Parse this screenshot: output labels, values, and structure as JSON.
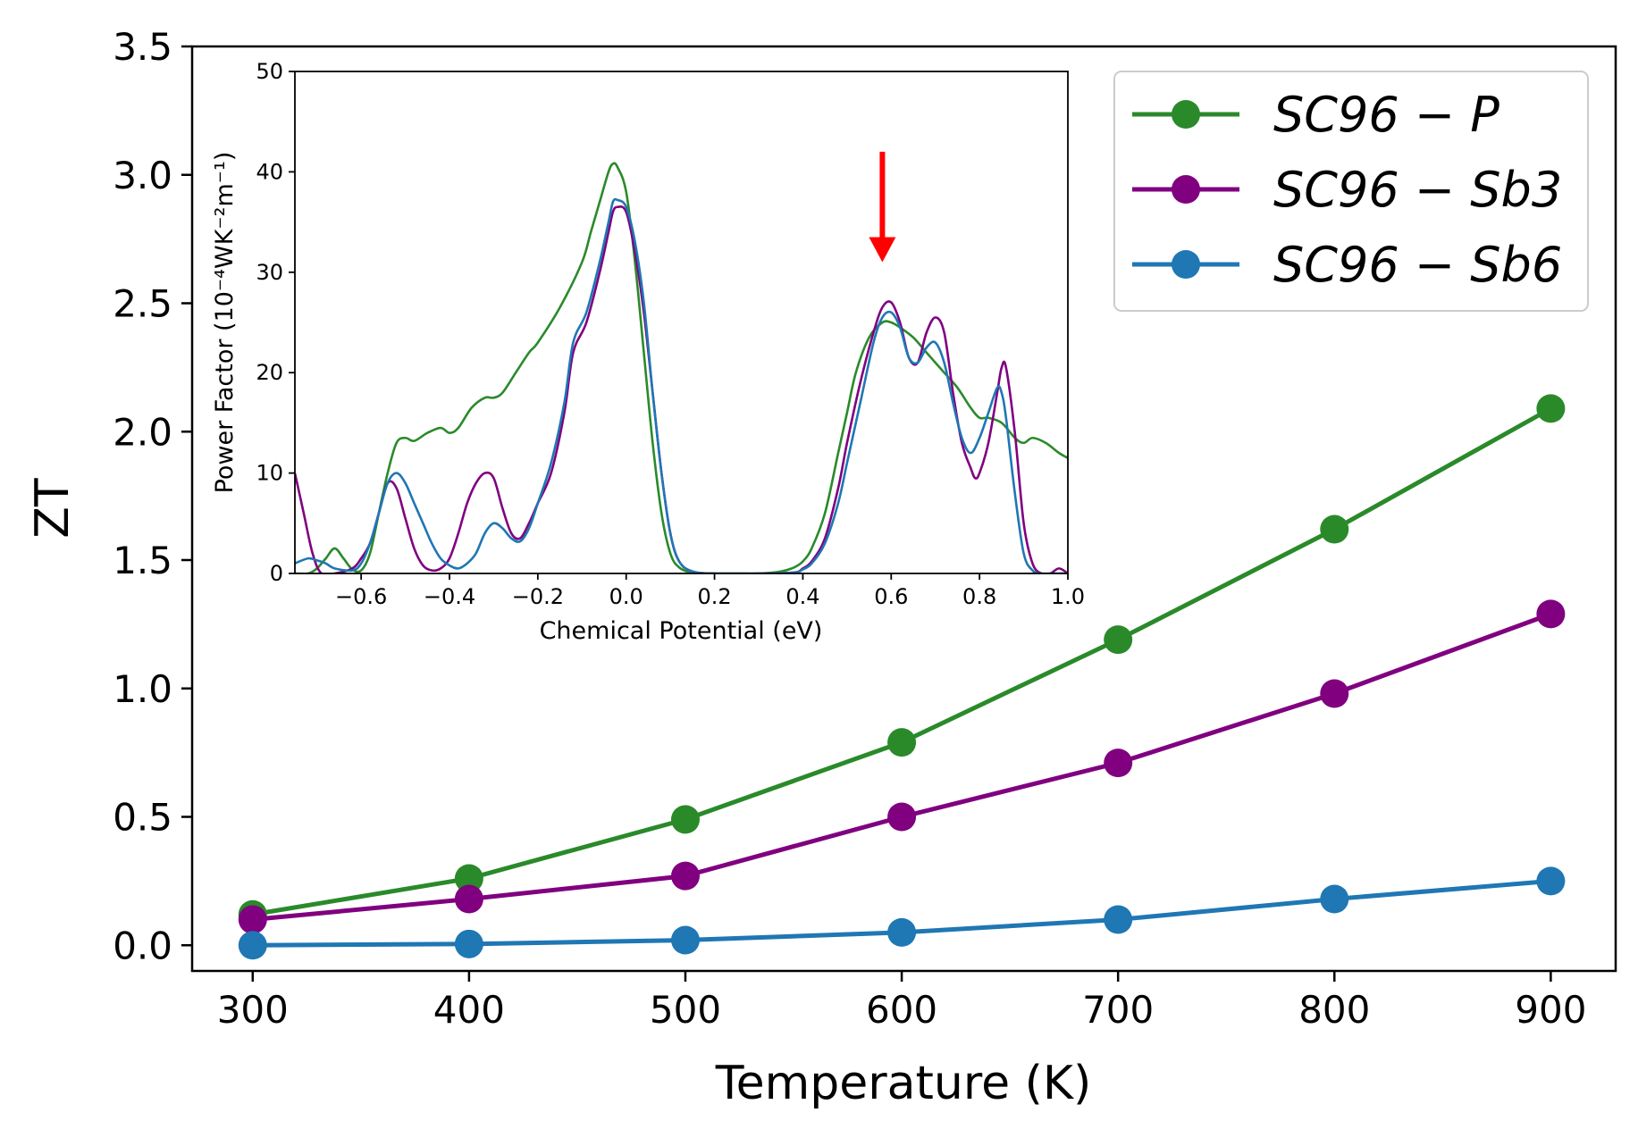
{
  "chart_data": [
    {
      "id": "main",
      "type": "line",
      "xlabel": "Temperature (K)",
      "ylabel": "ZT",
      "xlim": [
        272,
        930
      ],
      "ylim": [
        -0.1,
        3.5
      ],
      "x": [
        300,
        400,
        500,
        600,
        700,
        800,
        900
      ],
      "xticks": [
        300,
        400,
        500,
        600,
        700,
        800,
        900
      ],
      "yticks": [
        0.0,
        0.5,
        1.0,
        1.5,
        2.0,
        2.5,
        3.0,
        3.5
      ],
      "ytick_labels": [
        "0.0",
        "0.5",
        "1.0",
        "1.5",
        "2.0",
        "2.5",
        "3.0",
        "3.5"
      ],
      "legend_position": "top-right",
      "series": [
        {
          "name": "SC96 − P",
          "color": "#2a8a2a",
          "values": [
            0.12,
            0.26,
            0.49,
            0.79,
            1.19,
            1.62,
            2.09
          ]
        },
        {
          "name": "SC96 − Sb3",
          "color": "#800080",
          "values": [
            0.1,
            0.18,
            0.27,
            0.5,
            0.71,
            0.98,
            1.29
          ]
        },
        {
          "name": "SC96 − Sb6",
          "color": "#1f77b4",
          "values": [
            0.0,
            0.005,
            0.02,
            0.05,
            0.1,
            0.18,
            0.25
          ]
        }
      ]
    },
    {
      "id": "inset",
      "type": "line",
      "xlabel": "Chemical Potential (eV)",
      "ylabel": "Power Factor (10⁻⁴WK⁻²m⁻¹)",
      "xlim": [
        -0.75,
        1.0
      ],
      "ylim": [
        0,
        50
      ],
      "xticks": [
        -0.6,
        -0.4,
        -0.2,
        0.0,
        0.2,
        0.4,
        0.6,
        0.8,
        1.0
      ],
      "xtick_labels": [
        "−0.6",
        "−0.4",
        "−0.2",
        "0.0",
        "0.2",
        "0.4",
        "0.6",
        "0.8",
        "1.0"
      ],
      "yticks": [
        0,
        10,
        20,
        30,
        40,
        50
      ],
      "ytick_labels": [
        "0",
        "10",
        "20",
        "30",
        "40",
        "50"
      ],
      "annotation": {
        "type": "arrow",
        "color": "#ff0000",
        "x": 0.58,
        "y_from": 42,
        "y_to": 31
      },
      "series": [
        {
          "name": "SC96 − P",
          "color": "#2a8a2a",
          "x": [
            -0.75,
            -0.72,
            -0.7,
            -0.68,
            -0.66,
            -0.64,
            -0.62,
            -0.6,
            -0.58,
            -0.56,
            -0.54,
            -0.52,
            -0.5,
            -0.48,
            -0.45,
            -0.42,
            -0.4,
            -0.38,
            -0.35,
            -0.32,
            -0.3,
            -0.28,
            -0.25,
            -0.22,
            -0.2,
            -0.15,
            -0.1,
            -0.08,
            -0.06,
            -0.04,
            -0.03,
            -0.02,
            0.0,
            0.02,
            0.04,
            0.06,
            0.08,
            0.1,
            0.12,
            0.15,
            0.2,
            0.25,
            0.3,
            0.35,
            0.38,
            0.4,
            0.42,
            0.45,
            0.48,
            0.5,
            0.52,
            0.55,
            0.58,
            0.6,
            0.62,
            0.65,
            0.68,
            0.7,
            0.72,
            0.75,
            0.78,
            0.8,
            0.82,
            0.85,
            0.88,
            0.9,
            0.92,
            0.95,
            0.98,
            1.0
          ],
          "y": [
            0,
            0,
            0.5,
            1.5,
            2.5,
            1.5,
            0.4,
            0.3,
            2,
            6,
            10,
            13,
            13.5,
            13.2,
            14,
            14.5,
            14,
            14.5,
            16.5,
            17.5,
            17.5,
            18,
            20,
            22,
            23,
            26.5,
            31,
            34,
            37,
            40,
            40.8,
            40.5,
            38,
            31,
            22,
            13,
            6,
            2,
            0.6,
            0.1,
            0,
            0,
            0,
            0.2,
            0.6,
            1.2,
            2.5,
            6,
            12,
            16,
            20,
            23.5,
            25,
            25,
            24.5,
            23.5,
            22,
            21,
            20,
            18.5,
            16.5,
            15.5,
            15.5,
            15,
            13.5,
            13,
            13.5,
            13,
            12,
            11.5
          ]
        },
        {
          "name": "SC96 − Sb3",
          "color": "#800080",
          "x": [
            -0.75,
            -0.73,
            -0.71,
            -0.69,
            -0.66,
            -0.62,
            -0.6,
            -0.58,
            -0.56,
            -0.54,
            -0.52,
            -0.5,
            -0.48,
            -0.46,
            -0.44,
            -0.42,
            -0.4,
            -0.38,
            -0.36,
            -0.34,
            -0.32,
            -0.3,
            -0.28,
            -0.26,
            -0.24,
            -0.22,
            -0.2,
            -0.17,
            -0.14,
            -0.12,
            -0.09,
            -0.06,
            -0.04,
            -0.03,
            -0.02,
            0.0,
            0.02,
            0.04,
            0.06,
            0.08,
            0.1,
            0.12,
            0.15,
            0.2,
            0.3,
            0.38,
            0.4,
            0.42,
            0.45,
            0.48,
            0.5,
            0.53,
            0.56,
            0.58,
            0.6,
            0.62,
            0.64,
            0.66,
            0.68,
            0.7,
            0.72,
            0.74,
            0.76,
            0.78,
            0.79,
            0.8,
            0.82,
            0.84,
            0.85,
            0.86,
            0.88,
            0.9,
            0.92,
            0.94,
            0.96,
            0.98,
            1.0
          ],
          "y": [
            10,
            6,
            2,
            0,
            0,
            0.5,
            1.5,
            3,
            6,
            9,
            8.5,
            5.5,
            2.5,
            0.8,
            0.3,
            0.5,
            1.5,
            4,
            7,
            9,
            10,
            9.5,
            6.5,
            4,
            3.5,
            5,
            7,
            10,
            16,
            22,
            25,
            30,
            34,
            36,
            36.5,
            36,
            32,
            26,
            18,
            10,
            4,
            1.2,
            0.2,
            0,
            0,
            0.1,
            0.5,
            1.2,
            3.5,
            8.5,
            13,
            19,
            24,
            26.5,
            27,
            25,
            21.5,
            21,
            24,
            25.5,
            24,
            18,
            13,
            10.5,
            9.5,
            10,
            13,
            18,
            20.5,
            20.5,
            14,
            5,
            1,
            0,
            0,
            0.5,
            0
          ]
        },
        {
          "name": "SC96 − Sb6",
          "color": "#1f77b4",
          "x": [
            -0.75,
            -0.72,
            -0.7,
            -0.68,
            -0.66,
            -0.62,
            -0.6,
            -0.58,
            -0.56,
            -0.54,
            -0.52,
            -0.5,
            -0.48,
            -0.46,
            -0.44,
            -0.42,
            -0.4,
            -0.38,
            -0.36,
            -0.34,
            -0.32,
            -0.3,
            -0.28,
            -0.26,
            -0.24,
            -0.22,
            -0.2,
            -0.17,
            -0.14,
            -0.12,
            -0.09,
            -0.06,
            -0.04,
            -0.03,
            -0.02,
            0.0,
            0.02,
            0.04,
            0.06,
            0.08,
            0.1,
            0.12,
            0.15,
            0.2,
            0.3,
            0.38,
            0.4,
            0.42,
            0.45,
            0.48,
            0.5,
            0.53,
            0.56,
            0.58,
            0.6,
            0.62,
            0.64,
            0.66,
            0.68,
            0.7,
            0.72,
            0.74,
            0.76,
            0.78,
            0.8,
            0.82,
            0.84,
            0.85,
            0.86,
            0.88,
            0.9,
            0.92,
            0.94,
            0.96,
            0.98,
            1.0
          ],
          "y": [
            1,
            1.5,
            1.3,
            1,
            0.5,
            0.3,
            1,
            3,
            6,
            9,
            10,
            9,
            7,
            5,
            3,
            1.5,
            0.8,
            0.5,
            1,
            2,
            4,
            5,
            4.5,
            3.5,
            3.2,
            4.5,
            7,
            11,
            17,
            23,
            26,
            31,
            35,
            37,
            37.2,
            36.5,
            33,
            27,
            18,
            10,
            4,
            1.2,
            0.2,
            0,
            0,
            0.1,
            0.4,
            1,
            3,
            7,
            11,
            17,
            23,
            25.5,
            26,
            24.5,
            21.5,
            21,
            22.5,
            23,
            21,
            17,
            13.5,
            12,
            13.5,
            16,
            18.5,
            18,
            15.5,
            8,
            2,
            0.3,
            0,
            0,
            0,
            0
          ]
        }
      ]
    }
  ]
}
